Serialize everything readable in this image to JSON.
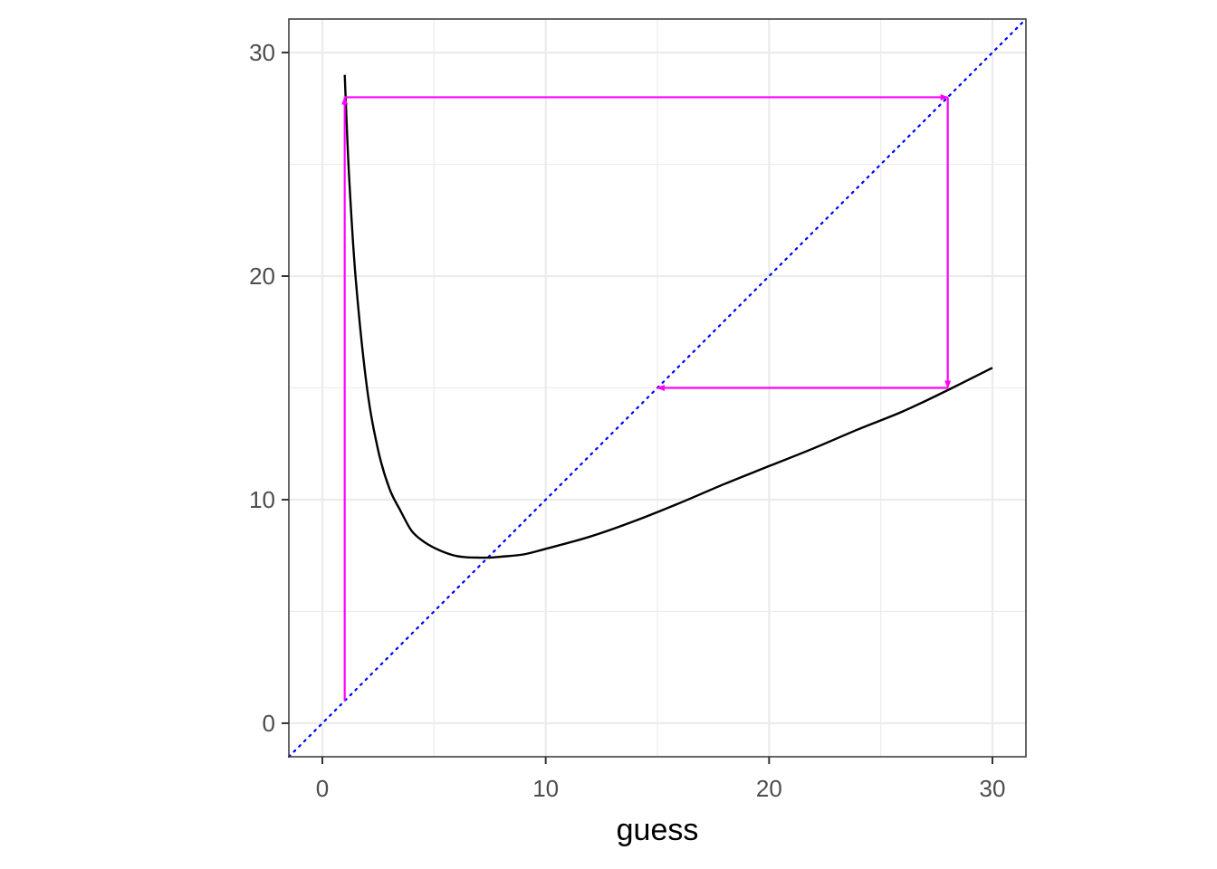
{
  "chart_data": {
    "type": "line",
    "title": "",
    "xlabel": "guess",
    "ylabel": "",
    "xlim": [
      -1.5,
      31.5
    ],
    "ylim": [
      -1.5,
      31.5
    ],
    "x_ticks": [
      0,
      10,
      20,
      30
    ],
    "y_ticks": [
      0,
      10,
      20,
      30
    ],
    "x_tick_labels": [
      "0",
      "10",
      "20",
      "30"
    ],
    "y_tick_labels": [
      "0",
      "10",
      "20",
      "30"
    ],
    "grid": true,
    "grid_minor": [
      5,
      15,
      25
    ],
    "legend": "none",
    "colors": {
      "curve": "#000000",
      "identity": "#0000ff",
      "iteration": "#ff00ff",
      "grid": "#ebebeb",
      "panel_border": "#333333",
      "background": "#ffffff"
    },
    "series": [
      {
        "kind": "curve",
        "x": [
          1,
          1.2,
          1.5,
          2,
          2.5,
          3,
          3.5,
          4,
          4.5,
          5,
          5.5,
          6,
          6.5,
          7,
          7.483,
          8,
          9,
          10,
          12,
          14,
          16,
          18,
          20,
          22,
          24,
          26,
          28,
          30
        ],
        "y": [
          29,
          24.4,
          19.8,
          15,
          12.2,
          10.5,
          9.5,
          8.6,
          8.15,
          7.85,
          7.63,
          7.48,
          7.42,
          7.41,
          7.41,
          7.45,
          7.55,
          7.8,
          8.35,
          9.05,
          9.85,
          10.7,
          11.5,
          12.3,
          13.15,
          13.95,
          14.9,
          15.9
        ]
      },
      {
        "kind": "identity",
        "x": [
          -1.5,
          31.5
        ],
        "y": [
          -1.5,
          31.5
        ]
      },
      {
        "kind": "iteration-arrows",
        "segments": [
          {
            "x": [
              1,
              1
            ],
            "y": [
              1,
              28
            ]
          },
          {
            "x": [
              1,
              28
            ],
            "y": [
              28,
              28
            ]
          },
          {
            "x": [
              28,
              28
            ],
            "y": [
              28,
              15
            ]
          },
          {
            "x": [
              28,
              15
            ],
            "y": [
              15,
              15
            ]
          }
        ]
      }
    ]
  }
}
